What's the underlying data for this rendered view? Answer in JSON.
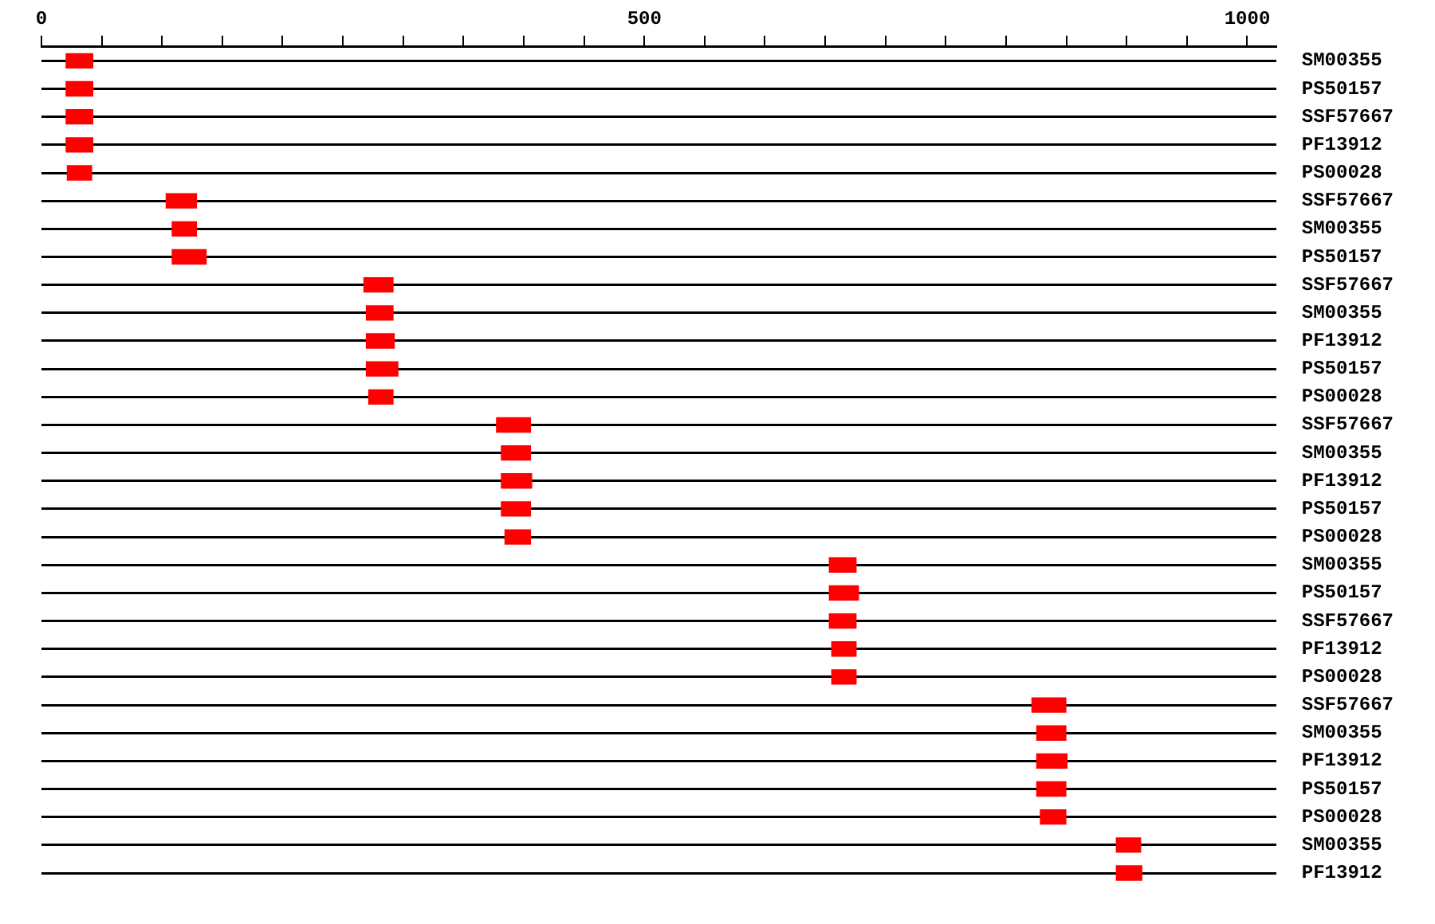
{
  "chart_data": {
    "type": "bar",
    "orientation": "horizontal",
    "color": "#ff0000",
    "grid": "y",
    "legend": false,
    "categories": [
      "SM00355",
      "PS50157",
      "SSF57667",
      "PF13912",
      "PS00028",
      "SSF57667",
      "SM00355",
      "PS50157",
      "SSF57667",
      "SM00355",
      "PF13912",
      "PS50157",
      "PS00028",
      "SSF57667",
      "SM00355",
      "PF13912",
      "PS50157",
      "PS00028",
      "SM00355",
      "PS50157",
      "SSF57667",
      "PF13912",
      "PS00028",
      "SSF57667",
      "SM00355",
      "PF13912",
      "PS50157",
      "PS00028",
      "SM00355",
      "PF13912"
    ],
    "base": [
      20,
      20,
      20,
      20,
      21,
      103,
      108,
      108,
      267,
      269,
      269,
      269,
      271,
      377,
      381,
      381,
      381,
      384,
      653,
      653,
      653,
      655,
      655,
      821,
      825,
      825,
      825,
      828,
      891,
      891
    ],
    "values": [
      23,
      23,
      23,
      23,
      21,
      26,
      21,
      29,
      25,
      23,
      24,
      27,
      21,
      29,
      25,
      26,
      25,
      22,
      23,
      25,
      23,
      21,
      21,
      29,
      25,
      26,
      25,
      22,
      21,
      22
    ],
    "xlim": [
      0,
      1024
    ],
    "xticks": [
      0,
      {
        "value": 50,
        "label": null
      },
      {
        "value": 100,
        "label": null
      },
      {
        "value": 150,
        "label": null
      },
      {
        "value": 200,
        "label": null
      },
      {
        "value": 250,
        "label": null
      },
      {
        "value": 300,
        "label": null
      },
      {
        "value": 350,
        "label": null
      },
      {
        "value": 400,
        "label": null
      },
      {
        "value": 450,
        "label": null
      },
      500,
      {
        "value": 550,
        "label": null
      },
      {
        "value": 600,
        "label": null
      },
      {
        "value": 650,
        "label": null
      },
      {
        "value": 700,
        "label": null
      },
      {
        "value": 750,
        "label": null
      },
      {
        "value": 800,
        "label": null
      },
      {
        "value": 850,
        "label": null
      },
      {
        "value": 900,
        "label": null
      },
      {
        "value": 950,
        "label": null
      },
      1000
    ]
  }
}
